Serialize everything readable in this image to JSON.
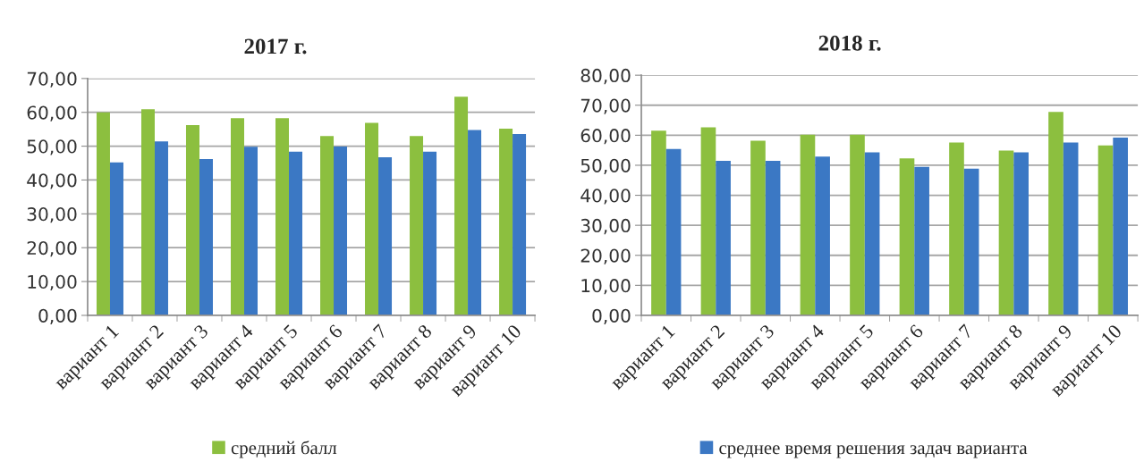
{
  "chart_data": [
    {
      "type": "bar",
      "title": "2017 г.",
      "categories": [
        "вариант 1",
        "вариант 2",
        "вариант 3",
        "вариант 4",
        "вариант 5",
        "вариант 6",
        "вариант 7",
        "вариант 8",
        "вариант 9",
        "вариант 10"
      ],
      "series": [
        {
          "name": "средний балл",
          "color": "#8cbf3f",
          "values": [
            60.0,
            60.9,
            56.2,
            58.3,
            58.3,
            53.0,
            56.9,
            53.0,
            64.6,
            55.2
          ]
        },
        {
          "color": "#3b78c4",
          "values": [
            45.2,
            51.4,
            46.2,
            49.8,
            48.4,
            49.9,
            46.7,
            48.4,
            54.8,
            53.6
          ]
        }
      ],
      "ylim": [
        0,
        70
      ],
      "yticks": [
        {
          "value": 0,
          "label": "0,00"
        },
        {
          "value": 10,
          "label": "10,00"
        },
        {
          "value": 20,
          "label": "20,00"
        },
        {
          "value": 30,
          "label": "30,00"
        },
        {
          "value": 40,
          "label": "40,00"
        },
        {
          "value": 50,
          "label": "50,00"
        },
        {
          "value": 60,
          "label": "60,00"
        },
        {
          "value": 70,
          "label": "70,00"
        }
      ],
      "grid": "y",
      "legend": "bottom"
    },
    {
      "type": "bar",
      "title": "2018 г.",
      "categories": [
        "вариант 1",
        "вариант 2",
        "вариант 3",
        "вариант 4",
        "вариант 5",
        "вариант 6",
        "вариант 7",
        "вариант 8",
        "вариант 9",
        "вариант 10"
      ],
      "series": [
        {
          "color": "#8cbf3f",
          "values": [
            61.5,
            62.6,
            58.2,
            60.2,
            60.2,
            52.3,
            57.6,
            54.9,
            67.8,
            56.6
          ]
        },
        {
          "name": "среднее время решения задач варианта",
          "color": "#3b78c4",
          "values": [
            55.4,
            51.5,
            51.5,
            52.9,
            54.3,
            49.5,
            48.9,
            54.3,
            57.6,
            59.2
          ]
        }
      ],
      "ylim": [
        0,
        80
      ],
      "yticks": [
        {
          "value": 0,
          "label": "0,00"
        },
        {
          "value": 10,
          "label": "10,00"
        },
        {
          "value": 20,
          "label": "20,00"
        },
        {
          "value": 30,
          "label": "30,00"
        },
        {
          "value": 40,
          "label": "40,00"
        },
        {
          "value": 50,
          "label": "50,00"
        },
        {
          "value": 60,
          "label": "60,00"
        },
        {
          "value": 70,
          "label": "70,00"
        },
        {
          "value": 80,
          "label": "80,00"
        }
      ],
      "grid": "y",
      "legend": "bottom"
    }
  ]
}
